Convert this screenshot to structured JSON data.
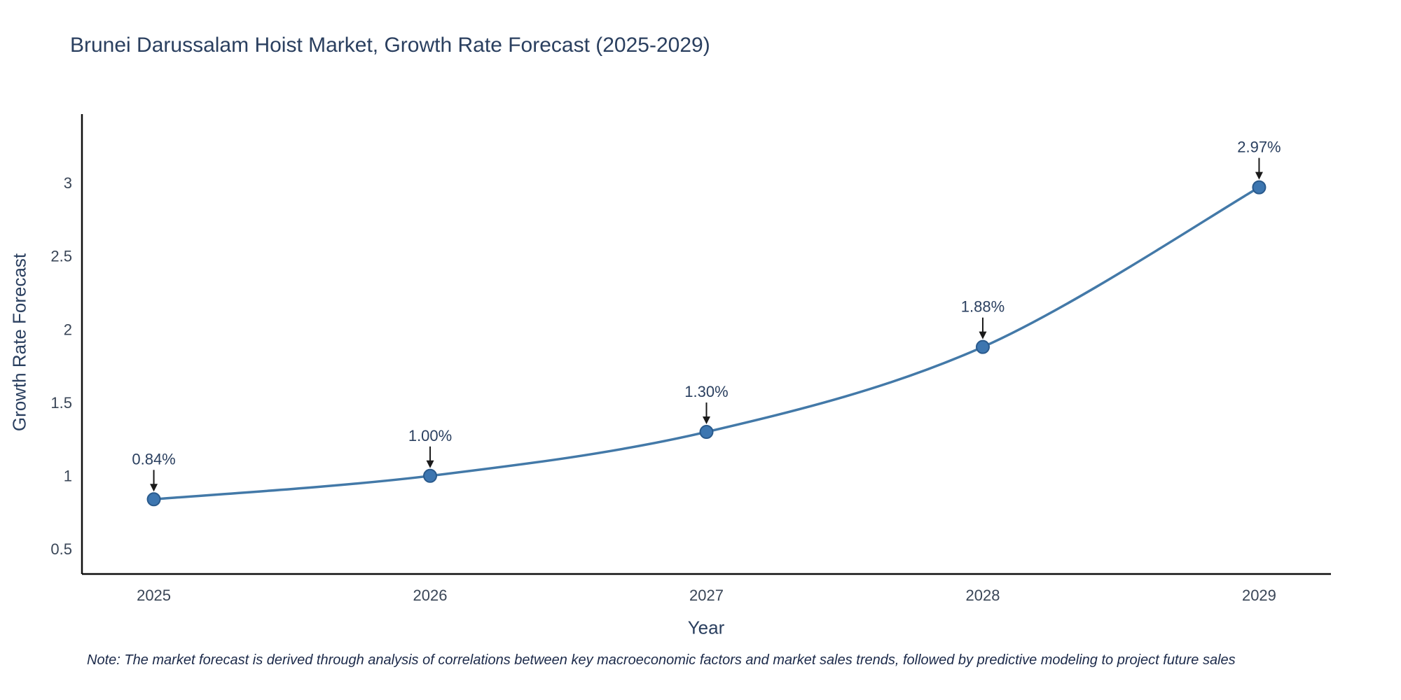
{
  "note": "Note: The market forecast is derived through analysis of correlations between key macroeconomic factors and market sales trends, followed by predictive modeling to project future sales",
  "chart_data": {
    "type": "line",
    "title": "Brunei Darussalam Hoist Market, Growth Rate Forecast (2025-2029)",
    "xlabel": "Year",
    "ylabel": "Growth Rate Forecast",
    "x": [
      2025,
      2026,
      2027,
      2028,
      2029
    ],
    "x_tick_labels": [
      "2025",
      "2026",
      "2027",
      "2028",
      "2029"
    ],
    "values": [
      0.84,
      1.0,
      1.3,
      1.88,
      2.97
    ],
    "point_labels": [
      "0.84%",
      "1.00%",
      "1.30%",
      "1.88%",
      "2.97%"
    ],
    "yticks": [
      0.5,
      1,
      1.5,
      2,
      2.5,
      3
    ],
    "ytick_labels": [
      "0.5",
      "1",
      "1.5",
      "2",
      "2.5",
      "3"
    ],
    "xlim": [
      2024.74,
      2029.26
    ],
    "ylim": [
      0.33,
      3.47
    ],
    "grid": false,
    "legend": "none",
    "line_color": "#4379a8",
    "marker_color": "#3d76b0",
    "marker_edge_color": "#2a5a8c",
    "axis_color": "#0d0d0d",
    "arrow_color": "#1a1a1a",
    "text_color": "#2a3f5f",
    "tick_color": "#3a4657"
  }
}
